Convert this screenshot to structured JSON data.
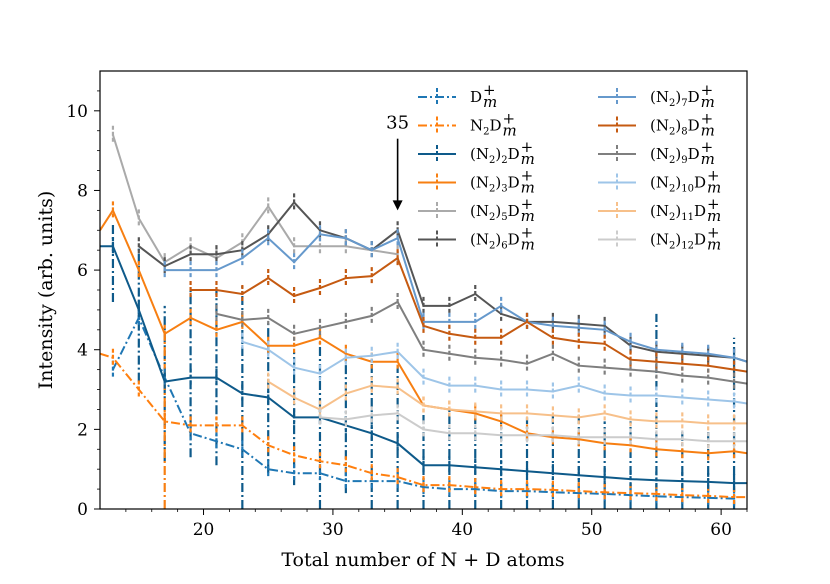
{
  "chart_data": {
    "type": "line",
    "title": "",
    "xlabel": "Total number of N + D atoms",
    "ylabel": "Intensity (arb. units)",
    "xlim": [
      12,
      62
    ],
    "ylim": [
      0,
      11
    ],
    "xticks": [
      20,
      30,
      40,
      50,
      60
    ],
    "yticks": [
      0,
      2,
      4,
      6,
      8,
      10
    ],
    "grid": false,
    "legend": {
      "placement": "top-right",
      "columns": 2
    },
    "annotation": {
      "text": "35",
      "x": 35,
      "arrow_from_y": 9.3,
      "arrow_to_y": 7.5
    },
    "series": [
      {
        "name": "D_m^+",
        "base": "D",
        "sub": "",
        "sup": "+",
        "idx": "m",
        "color": "#1f77b4",
        "dash": "dashdot",
        "x": [
          13,
          15,
          17,
          19,
          21,
          23,
          25,
          27,
          29,
          31,
          33,
          35,
          37,
          39,
          41,
          43,
          45,
          47,
          49,
          51,
          53,
          55,
          57,
          59,
          61
        ],
        "y": [
          3.5,
          4.8,
          3.3,
          1.9,
          1.7,
          1.5,
          1.0,
          0.9,
          0.9,
          0.7,
          0.7,
          0.7,
          0.55,
          0.5,
          0.5,
          0.45,
          0.45,
          0.42,
          0.4,
          0.38,
          0.35,
          0.32,
          0.3,
          0.28,
          0.26
        ]
      },
      {
        "name": "N_2D_m^+",
        "base": "N",
        "sub": "2",
        "tail": "D",
        "sup": "+",
        "idx": "m",
        "color": "#ff7f0e",
        "dash": "dashdot",
        "x": [
          12,
          13,
          15,
          17,
          19,
          21,
          23,
          25,
          27,
          29,
          31,
          33,
          35,
          37,
          39,
          41,
          43,
          45,
          47,
          49,
          51,
          53,
          55,
          57,
          59,
          61,
          62
        ],
        "y": [
          3.9,
          3.8,
          3.0,
          2.2,
          2.1,
          2.1,
          2.1,
          1.6,
          1.35,
          1.2,
          1.1,
          0.9,
          0.8,
          0.6,
          0.6,
          0.55,
          0.5,
          0.5,
          0.48,
          0.45,
          0.42,
          0.4,
          0.38,
          0.35,
          0.33,
          0.3,
          0.3
        ]
      },
      {
        "name": "(N_2)_2D_m^+",
        "base": "(N",
        "sub": "2",
        "par": "2",
        "sup": "+",
        "idx": "m",
        "color": "#0e5a8a",
        "dash": "solid",
        "x": [
          12,
          13,
          15,
          17,
          19,
          21,
          23,
          25,
          27,
          29,
          31,
          33,
          35,
          37,
          39,
          41,
          43,
          45,
          47,
          49,
          51,
          53,
          55,
          57,
          59,
          61,
          62
        ],
        "y": [
          6.6,
          6.6,
          5.0,
          3.2,
          3.3,
          3.3,
          2.9,
          2.8,
          2.3,
          2.3,
          2.1,
          1.9,
          1.65,
          1.1,
          1.1,
          1.05,
          1.0,
          0.95,
          0.9,
          0.85,
          0.8,
          0.75,
          0.72,
          0.7,
          0.68,
          0.65,
          0.65
        ]
      },
      {
        "name": "(N_2)_3D_m^+",
        "base": "(N",
        "sub": "2",
        "par": "3",
        "sup": "+",
        "idx": "m",
        "color": "#f77f12",
        "dash": "solid",
        "x": [
          12,
          13,
          15,
          17,
          19,
          21,
          23,
          25,
          27,
          29,
          31,
          33,
          35,
          37,
          39,
          41,
          43,
          45,
          47,
          49,
          51,
          53,
          55,
          57,
          59,
          61,
          62
        ],
        "y": [
          7.0,
          7.5,
          6.0,
          4.4,
          4.8,
          4.5,
          4.7,
          4.1,
          4.1,
          4.3,
          3.9,
          3.7,
          3.7,
          2.6,
          2.5,
          2.4,
          2.2,
          1.9,
          1.8,
          1.75,
          1.65,
          1.6,
          1.5,
          1.45,
          1.4,
          1.45,
          1.4
        ]
      },
      {
        "name": "(N_2)_5D_m^+",
        "base": "(N",
        "sub": "2",
        "par": "5",
        "sup": "+",
        "idx": "m",
        "color": "#aaaaaa",
        "dash": "solid",
        "x": [
          13,
          15,
          17,
          19,
          21,
          23,
          25,
          27,
          29,
          31,
          33,
          35
        ],
        "y": [
          9.4,
          7.3,
          6.2,
          6.6,
          6.3,
          6.7,
          7.6,
          6.6,
          6.6,
          6.6,
          6.5,
          6.4
        ]
      },
      {
        "name": "(N_2)_6D_m^+",
        "base": "(N",
        "sub": "2",
        "par": "6",
        "sup": "+",
        "idx": "m",
        "color": "#555555",
        "dash": "solid",
        "x": [
          15,
          17,
          19,
          21,
          23,
          25,
          27,
          29,
          31,
          33,
          35,
          37,
          39,
          41,
          43,
          45,
          47,
          49,
          51,
          53,
          55,
          57,
          59,
          61,
          62
        ],
        "y": [
          6.6,
          6.1,
          6.4,
          6.4,
          6.5,
          6.9,
          7.7,
          7.0,
          6.8,
          6.5,
          7.0,
          5.1,
          5.1,
          5.4,
          4.9,
          4.7,
          4.7,
          4.65,
          4.6,
          4.1,
          3.95,
          3.9,
          3.85,
          3.8,
          3.7
        ]
      },
      {
        "name": "(N_2)_7D_m^+",
        "base": "(N",
        "sub": "2",
        "par": "7",
        "sup": "+",
        "idx": "m",
        "color": "#6699cc",
        "dash": "solid",
        "x": [
          17,
          19,
          21,
          23,
          25,
          27,
          29,
          31,
          33,
          35,
          37,
          39,
          41,
          43,
          45,
          47,
          49,
          51,
          53,
          55,
          57,
          59,
          61,
          62
        ],
        "y": [
          6.0,
          6.0,
          6.0,
          6.3,
          6.8,
          6.2,
          6.9,
          6.8,
          6.5,
          6.8,
          4.7,
          4.7,
          4.7,
          5.1,
          4.7,
          4.6,
          4.55,
          4.5,
          4.2,
          4.0,
          3.95,
          3.9,
          3.8,
          3.7
        ]
      },
      {
        "name": "(N_2)_8D_m^+",
        "base": "(N",
        "sub": "2",
        "par": "8",
        "sup": "+",
        "idx": "m",
        "color": "#c55a11",
        "dash": "solid",
        "x": [
          19,
          21,
          23,
          25,
          27,
          29,
          31,
          33,
          35,
          37,
          39,
          41,
          43,
          45,
          47,
          49,
          51,
          53,
          55,
          57,
          59,
          61,
          62
        ],
        "y": [
          5.5,
          5.5,
          5.4,
          5.8,
          5.35,
          5.55,
          5.8,
          5.85,
          6.3,
          4.6,
          4.4,
          4.3,
          4.3,
          4.7,
          4.3,
          4.2,
          4.15,
          3.75,
          3.7,
          3.65,
          3.6,
          3.5,
          3.45
        ]
      },
      {
        "name": "(N_2)_9D_m^+",
        "base": "(N",
        "sub": "2",
        "par": "9",
        "sup": "+",
        "idx": "m",
        "color": "#7f7f7f",
        "dash": "solid",
        "x": [
          21,
          23,
          25,
          27,
          29,
          31,
          33,
          35,
          37,
          39,
          41,
          43,
          45,
          47,
          49,
          51,
          53,
          55,
          57,
          59,
          61,
          62
        ],
        "y": [
          4.9,
          4.75,
          4.8,
          4.4,
          4.55,
          4.7,
          4.85,
          5.2,
          4.0,
          3.9,
          3.8,
          3.75,
          3.65,
          3.9,
          3.6,
          3.55,
          3.5,
          3.45,
          3.35,
          3.3,
          3.2,
          3.15
        ]
      },
      {
        "name": "(N_2)_10D_m^+",
        "base": "(N",
        "sub": "2",
        "par": "10",
        "sup": "+",
        "idx": "m",
        "color": "#9ec5e8",
        "dash": "solid",
        "x": [
          23,
          25,
          27,
          29,
          31,
          33,
          35,
          37,
          39,
          41,
          43,
          45,
          47,
          49,
          51,
          53,
          55,
          57,
          59,
          61,
          62
        ],
        "y": [
          4.2,
          4.0,
          3.55,
          3.4,
          3.8,
          3.85,
          3.95,
          3.3,
          3.1,
          3.1,
          3.0,
          3.0,
          2.95,
          3.1,
          2.9,
          2.85,
          2.85,
          2.8,
          2.75,
          2.7,
          2.65
        ]
      },
      {
        "name": "(N_2)_11D_m^+",
        "base": "(N",
        "sub": "2",
        "par": "11",
        "sup": "+",
        "idx": "m",
        "color": "#f7c08a",
        "dash": "solid",
        "x": [
          25,
          27,
          29,
          31,
          33,
          35,
          37,
          39,
          41,
          43,
          45,
          47,
          49,
          51,
          53,
          55,
          57,
          59,
          61,
          62
        ],
        "y": [
          3.2,
          2.8,
          2.5,
          2.9,
          3.1,
          3.05,
          2.6,
          2.5,
          2.45,
          2.4,
          2.4,
          2.35,
          2.3,
          2.4,
          2.25,
          2.2,
          2.2,
          2.15,
          2.15,
          2.15
        ]
      },
      {
        "name": "(N_2)_12D_m^+",
        "base": "(N",
        "sub": "2",
        "par": "12",
        "sup": "+",
        "idx": "m",
        "color": "#cccccc",
        "dash": "solid",
        "x": [
          29,
          31,
          33,
          35,
          37,
          39,
          41,
          43,
          45,
          47,
          49,
          51,
          53,
          55,
          57,
          59,
          61,
          62
        ],
        "y": [
          2.3,
          2.25,
          2.35,
          2.4,
          2.0,
          1.9,
          1.9,
          1.85,
          1.85,
          1.85,
          1.8,
          1.8,
          1.8,
          1.75,
          1.75,
          1.7,
          1.7,
          1.7
        ]
      }
    ],
    "large_error_bars": [
      {
        "series": 2,
        "x": 13,
        "lo": 5.2,
        "hi": 7.2
      },
      {
        "series": 2,
        "x": 15,
        "lo": 3.2,
        "hi": 6.6
      },
      {
        "series": 2,
        "x": 17,
        "lo": 1.2,
        "hi": 5.1
      },
      {
        "series": 2,
        "x": 19,
        "lo": 1.3,
        "hi": 5.5
      },
      {
        "series": 2,
        "x": 21,
        "lo": 1.1,
        "hi": 5.5
      },
      {
        "series": 2,
        "x": 23,
        "lo": 0.0,
        "hi": 5.6
      },
      {
        "series": 2,
        "x": 25,
        "lo": 0.9,
        "hi": 4.7
      },
      {
        "series": 2,
        "x": 27,
        "lo": 0.6,
        "hi": 4.0
      },
      {
        "series": 2,
        "x": 29,
        "lo": 0.0,
        "hi": 4.4
      },
      {
        "series": 2,
        "x": 31,
        "lo": 0.4,
        "hi": 3.8
      },
      {
        "series": 2,
        "x": 33,
        "lo": 0.0,
        "hi": 3.8
      },
      {
        "series": 2,
        "x": 35,
        "lo": 0.0,
        "hi": 3.6
      },
      {
        "series": 2,
        "x": 37,
        "lo": 0.0,
        "hi": 2.4
      },
      {
        "series": 2,
        "x": 39,
        "lo": 0.0,
        "hi": 2.5
      },
      {
        "series": 2,
        "x": 41,
        "lo": 0.0,
        "hi": 2.4
      },
      {
        "series": 2,
        "x": 43,
        "lo": 0.0,
        "hi": 2.4
      },
      {
        "series": 2,
        "x": 45,
        "lo": 0.0,
        "hi": 2.3
      },
      {
        "series": 2,
        "x": 47,
        "lo": 0.0,
        "hi": 2.4
      },
      {
        "series": 2,
        "x": 49,
        "lo": 0.0,
        "hi": 2.4
      },
      {
        "series": 2,
        "x": 51,
        "lo": 0.0,
        "hi": 2.2
      },
      {
        "series": 2,
        "x": 53,
        "lo": 0.0,
        "hi": 2.2
      },
      {
        "series": 2,
        "x": 55,
        "lo": 0.0,
        "hi": 4.9
      },
      {
        "series": 2,
        "x": 57,
        "lo": 0.0,
        "hi": 2.0
      },
      {
        "series": 2,
        "x": 59,
        "lo": 0.0,
        "hi": 2.0
      },
      {
        "series": 2,
        "x": 61,
        "lo": 0.0,
        "hi": 4.3
      },
      {
        "series": 3,
        "x": 17,
        "lo": 0.0,
        "hi": 4.4
      }
    ]
  }
}
